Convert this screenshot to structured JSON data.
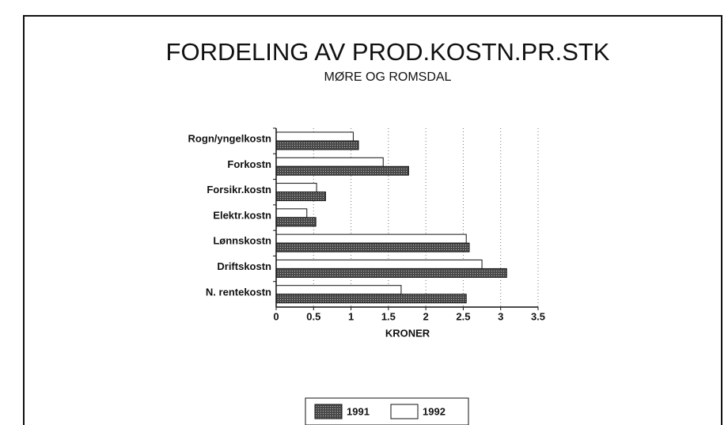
{
  "chart_data": {
    "type": "bar",
    "orientation": "horizontal",
    "title": "FORDELING AV PROD.KOSTN.PR.STK",
    "subtitle": "MØRE OG ROMSDAL",
    "x_label": "KRONER",
    "categories": [
      "Rogn/yngelkostn",
      "Forkostn",
      "Forsikr.kostn",
      "Elektr.kostn",
      "Lønnskostn",
      "Driftskostn",
      "N. rentekostn"
    ],
    "series": [
      {
        "name": "1991",
        "color": "#4a4a4a",
        "values": [
          1.1,
          1.77,
          0.66,
          0.53,
          2.58,
          3.08,
          2.54
        ]
      },
      {
        "name": "1992",
        "color": "#ffffff",
        "values": [
          1.03,
          1.43,
          0.54,
          0.41,
          2.54,
          2.75,
          1.67
        ]
      }
    ],
    "xlim": [
      0,
      3.5
    ],
    "xticks": [
      0,
      0.5,
      1,
      1.5,
      2,
      2.5,
      3,
      3.5
    ],
    "grid": true
  }
}
